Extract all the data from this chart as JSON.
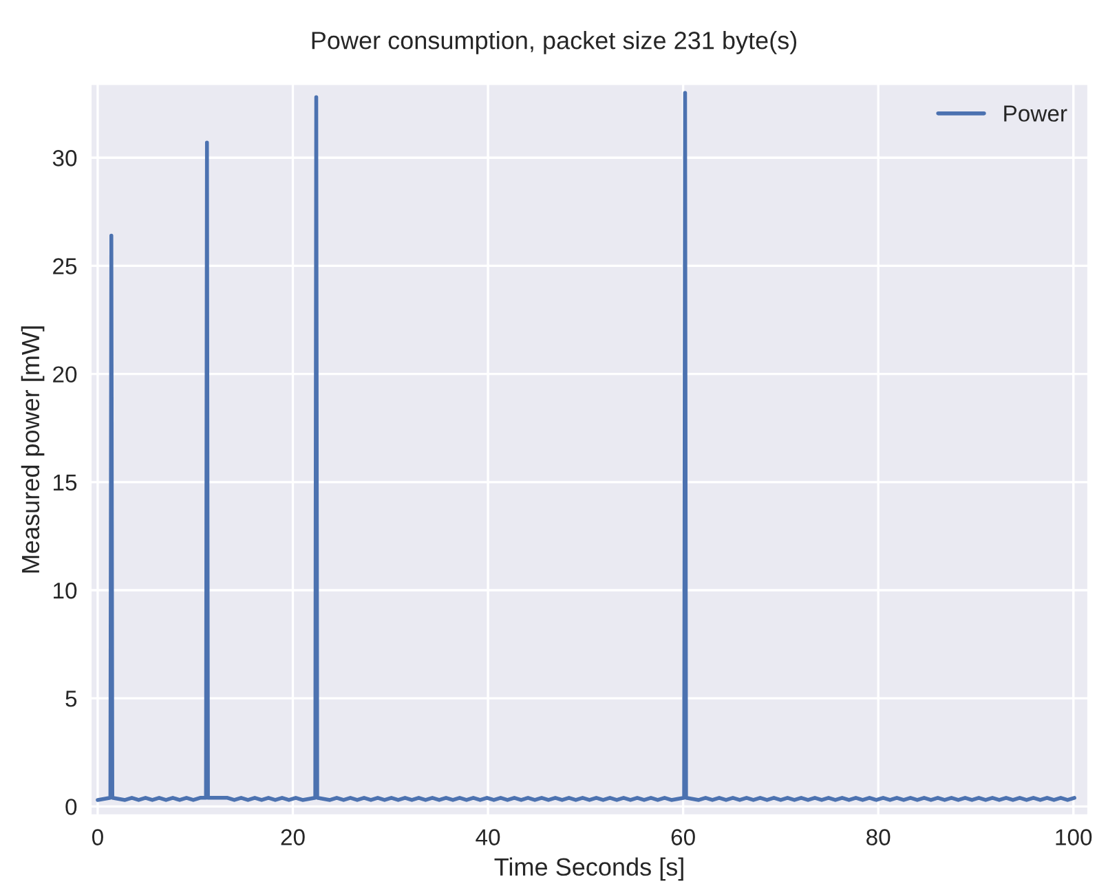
{
  "chart_data": {
    "type": "line",
    "title": "Power consumption, packet size 231 byte(s)",
    "xlabel": "Time Seconds [s]",
    "ylabel": "Measured power [mW]",
    "x": [
      0,
      1.3,
      1.4,
      1.5,
      2.8,
      3.5,
      4.2,
      4.9,
      5.6,
      6.3,
      7,
      7.7,
      8.4,
      9.1,
      9.8,
      10.5,
      11.1,
      11.2,
      11.3,
      13.3,
      14,
      14.7,
      15.4,
      16.1,
      16.8,
      17.5,
      18.2,
      18.9,
      19.6,
      20.3,
      21,
      22.3,
      22.4,
      22.5,
      23.8,
      24.5,
      25.2,
      25.9,
      26.6,
      27.3,
      28,
      28.7,
      29.4,
      30.1,
      30.8,
      31.5,
      32.2,
      32.9,
      33.6,
      34.3,
      35,
      35.7,
      36.4,
      37.1,
      37.8,
      38.5,
      39.2,
      39.9,
      40.6,
      41.3,
      42,
      42.7,
      43.4,
      44.1,
      44.8,
      45.5,
      46.2,
      46.9,
      47.6,
      48.3,
      49,
      49.7,
      50.4,
      51.1,
      51.8,
      52.5,
      53.2,
      53.9,
      54.6,
      55.3,
      56,
      56.7,
      57.4,
      58.1,
      58.8,
      60.1,
      60.2,
      60.3,
      61.6,
      62.3,
      63,
      63.7,
      64.4,
      65.1,
      65.8,
      66.5,
      67.2,
      67.9,
      68.6,
      69.3,
      70,
      70.7,
      71.4,
      72.1,
      72.8,
      73.5,
      74.2,
      74.9,
      75.6,
      76.3,
      77,
      77.7,
      78.4,
      79.1,
      79.8,
      80.5,
      81.2,
      81.9,
      82.6,
      83.3,
      84,
      84.7,
      85.4,
      86.1,
      86.8,
      87.5,
      88.2,
      88.9,
      89.6,
      90.3,
      91,
      91.7,
      92.4,
      93.1,
      93.8,
      94.5,
      95.2,
      95.9,
      96.6,
      97.3,
      98,
      98.7,
      99.4,
      100.1
    ],
    "series": [
      {
        "name": "Power",
        "color": "#4c72b0",
        "values": [
          0.3,
          0.4,
          26.4,
          0.4,
          0.3,
          0.4,
          0.3,
          0.4,
          0.3,
          0.4,
          0.3,
          0.4,
          0.3,
          0.4,
          0.3,
          0.4,
          0.4,
          30.7,
          0.4,
          0.4,
          0.3,
          0.4,
          0.3,
          0.4,
          0.3,
          0.4,
          0.3,
          0.4,
          0.3,
          0.4,
          0.3,
          0.4,
          32.8,
          0.4,
          0.3,
          0.4,
          0.3,
          0.4,
          0.3,
          0.4,
          0.3,
          0.4,
          0.3,
          0.4,
          0.3,
          0.4,
          0.3,
          0.4,
          0.3,
          0.4,
          0.3,
          0.4,
          0.3,
          0.4,
          0.3,
          0.4,
          0.3,
          0.4,
          0.3,
          0.4,
          0.3,
          0.4,
          0.3,
          0.4,
          0.3,
          0.4,
          0.3,
          0.4,
          0.3,
          0.4,
          0.3,
          0.4,
          0.3,
          0.4,
          0.3,
          0.4,
          0.3,
          0.4,
          0.3,
          0.4,
          0.3,
          0.4,
          0.3,
          0.4,
          0.3,
          0.4,
          33.0,
          0.4,
          0.3,
          0.4,
          0.3,
          0.4,
          0.3,
          0.4,
          0.3,
          0.4,
          0.3,
          0.4,
          0.3,
          0.4,
          0.3,
          0.4,
          0.3,
          0.4,
          0.3,
          0.4,
          0.3,
          0.4,
          0.3,
          0.4,
          0.3,
          0.4,
          0.3,
          0.4,
          0.3,
          0.4,
          0.3,
          0.4,
          0.3,
          0.4,
          0.3,
          0.4,
          0.3,
          0.4,
          0.3,
          0.4,
          0.3,
          0.4,
          0.3,
          0.4,
          0.3,
          0.4,
          0.3,
          0.4,
          0.3,
          0.4,
          0.3,
          0.4,
          0.3,
          0.4,
          0.3,
          0.4,
          0.3,
          0.4
        ]
      }
    ],
    "xlim": [
      -0.7,
      101.5
    ],
    "ylim": [
      -0.4,
      33.4
    ],
    "xticks": [
      0,
      20,
      40,
      60,
      80,
      100
    ],
    "yticks": [
      0,
      5,
      10,
      15,
      20,
      25,
      30
    ],
    "grid": true,
    "legend": "top right",
    "line_style": "solid",
    "marker": "none"
  }
}
